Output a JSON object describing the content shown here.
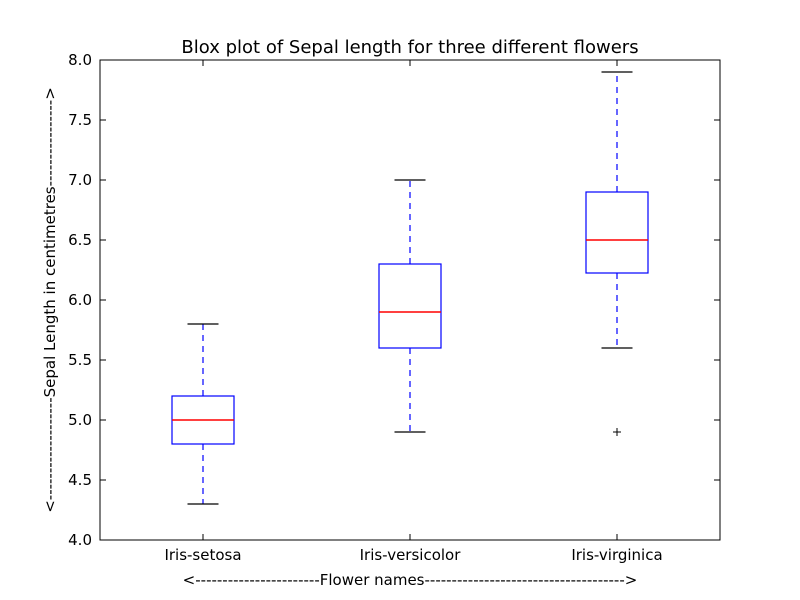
{
  "chart_data": {
    "type": "box",
    "title": "Blox plot of Sepal length for three different flowers",
    "xlabel": "<-----------------------Flower names------------------------------------->",
    "ylabel": "<-------------------Sepal Length in centimetres---------------->",
    "ylim": [
      4.0,
      8.0
    ],
    "yticks": [
      4.0,
      4.5,
      5.0,
      5.5,
      6.0,
      6.5,
      7.0,
      7.5,
      8.0
    ],
    "ytick_labels": [
      "4.0",
      "4.5",
      "5.0",
      "5.5",
      "6.0",
      "6.5",
      "7.0",
      "7.5",
      "8.0"
    ],
    "categories": [
      "Iris-setosa",
      "Iris-versicolor",
      "Iris-virginica"
    ],
    "boxes": [
      {
        "whisker_low": 4.3,
        "q1": 4.8,
        "median": 5.0,
        "q3": 5.2,
        "whisker_high": 5.8,
        "outliers": []
      },
      {
        "whisker_low": 4.9,
        "q1": 5.6,
        "median": 5.9,
        "q3": 6.3,
        "whisker_high": 7.0,
        "outliers": []
      },
      {
        "whisker_low": 5.6,
        "q1": 6.225,
        "median": 6.5,
        "q3": 6.9,
        "whisker_high": 7.9,
        "outliers": [
          4.9
        ]
      }
    ],
    "grid": false,
    "colors": {
      "box": "#0000ff",
      "median": "#ff0000",
      "whisker": "#0000ff",
      "cap": "#000000",
      "outlier": "#000000"
    }
  }
}
